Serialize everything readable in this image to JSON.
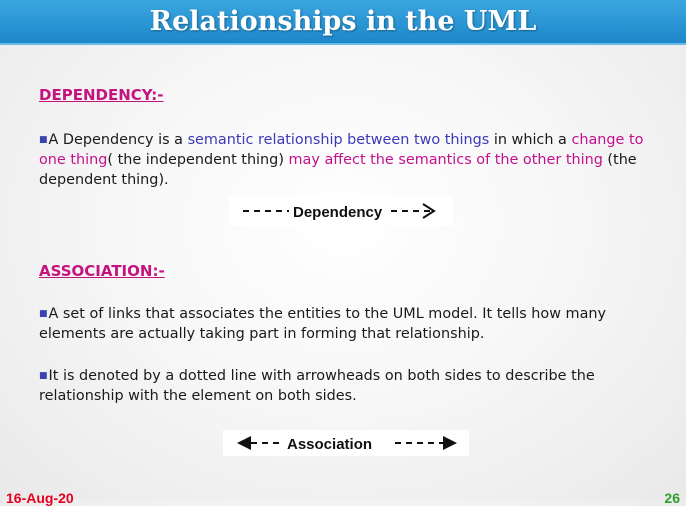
{
  "title": "Relationships in the UML",
  "dependency": {
    "heading": "DEPENDENCY:-",
    "p1": "A Dependency is a ",
    "p2": "semantic relationship between two things",
    "p3": " in which a ",
    "p4": "change to one thing",
    "p5": "( the independent thing) ",
    "p6": "may affect the semantics of the other thing",
    "p7": " (the dependent thing).",
    "diagram_label": "Dependency"
  },
  "association": {
    "heading": "ASSOCIATION:-",
    "para1": "A set of links that associates the entities to the UML model. It tells how many elements are actually taking part in forming that relationship.",
    "para2": "It is denoted by a dotted line with arrowheads on both sides to describe the relationship with the element on both sides.",
    "diagram_label": "Association"
  },
  "footer": {
    "date": "16-Aug-20",
    "page": "26"
  },
  "colors": {
    "heading": "#c4127f",
    "blue_text": "#3a3ab8",
    "magenta_text": "#c3118e",
    "title_bar": "#2a97d6"
  }
}
